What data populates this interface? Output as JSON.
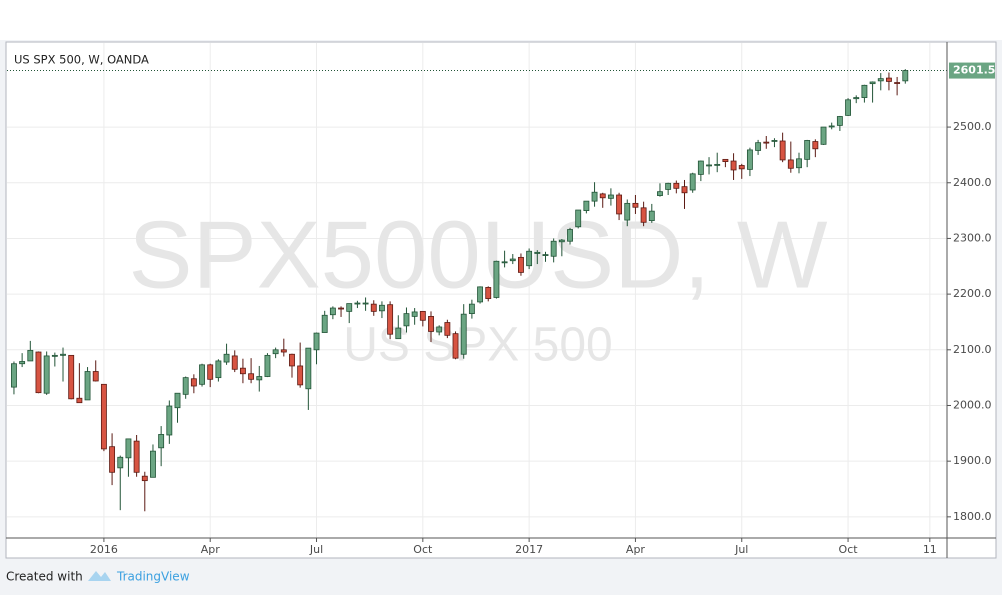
{
  "chart_data": {
    "type": "candlestick",
    "title": "US SPX 500, W, OANDA",
    "watermark": "SPX500USD, W",
    "watermark_subtitle": "US SPX 500",
    "categories": [
      null,
      null,
      null,
      null,
      null,
      null,
      null,
      null,
      null,
      null,
      null,
      null,
      null,
      null,
      null,
      null,
      null,
      null,
      null,
      null,
      null,
      null,
      null,
      null,
      null,
      null,
      null,
      null,
      null,
      null,
      null,
      null,
      null,
      null,
      null,
      null,
      null,
      null,
      null,
      null,
      null,
      null,
      null,
      null,
      null,
      null,
      null,
      null,
      null,
      null,
      null,
      null,
      null,
      null,
      null,
      null,
      null,
      null,
      null,
      null,
      null,
      null,
      null,
      null,
      null,
      null,
      null,
      null,
      null,
      null,
      null,
      null,
      null,
      null,
      null,
      null,
      null,
      null,
      null,
      null,
      null,
      null,
      null,
      null,
      null,
      null,
      null,
      null,
      null,
      null,
      null,
      null,
      null,
      null,
      null,
      null,
      null,
      null,
      null,
      null,
      null,
      null,
      null,
      null,
      null,
      null,
      null,
      null,
      null,
      null
    ],
    "series": [
      {
        "up_color": "#6ba583",
        "down_color": "#d75442",
        "up_border": "#225437",
        "down_border": "#5b1a13",
        "open": [
          2033,
          2075,
          2080,
          2096,
          2022,
          2089,
          2090,
          2090,
          2013,
          2010,
          2061,
          2038,
          1926,
          1888,
          1906,
          1936,
          1873,
          1871,
          1924,
          1947,
          1996,
          2020,
          2048,
          2038,
          2073,
          2050,
          2078,
          2089,
          2067,
          2057,
          2046,
          2052,
          2093,
          2100,
          2092,
          2071,
          2030,
          2100,
          2131,
          2163,
          2175,
          2169,
          2183,
          2184,
          2182,
          2170,
          2181,
          2120,
          2143,
          2160,
          2169,
          2160,
          2132,
          2149,
          2129,
          2092,
          2165,
          2186,
          2212,
          2194,
          2258,
          2260,
          2266,
          2251,
          2273,
          2270,
          2268,
          2294,
          2295,
          2321,
          2350,
          2367,
          2380,
          2372,
          2378,
          2333,
          2363,
          2355,
          2332,
          2377,
          2388,
          2399,
          2393,
          2387,
          2415,
          2431,
          2432,
          2442,
          2439,
          2431,
          2424,
          2458,
          2473,
          2475,
          2475,
          2441,
          2427,
          2442,
          2474,
          2469,
          2501,
          2503,
          2521,
          2551,
          2553,
          2578,
          2583,
          2588,
          2580,
          2583
        ],
        "high": [
          2079,
          2094,
          2116,
          2097,
          2097,
          2095,
          2104,
          2090,
          2076,
          2069,
          2081,
          2038,
          1950,
          1910,
          1940,
          1947,
          1881,
          1930,
          1963,
          2009,
          2022,
          2052,
          2056,
          2075,
          2075,
          2083,
          2111,
          2099,
          2084,
          2085,
          2071,
          2094,
          2104,
          2120,
          2093,
          2113,
          2103,
          2131,
          2170,
          2178,
          2178,
          2183,
          2188,
          2194,
          2189,
          2187,
          2187,
          2162,
          2176,
          2175,
          2169,
          2169,
          2144,
          2154,
          2133,
          2182,
          2190,
          2214,
          2214,
          2260,
          2278,
          2272,
          2273,
          2282,
          2279,
          2276,
          2300,
          2299,
          2319,
          2351,
          2367,
          2401,
          2382,
          2390,
          2382,
          2370,
          2378,
          2366,
          2362,
          2399,
          2400,
          2404,
          2405,
          2418,
          2440,
          2446,
          2454,
          2442,
          2453,
          2434,
          2463,
          2477,
          2484,
          2480,
          2490,
          2474,
          2454,
          2477,
          2478,
          2500,
          2508,
          2520,
          2552,
          2557,
          2576,
          2582,
          2597,
          2598,
          2590,
          2604
        ],
        "low": [
          2020,
          2069,
          2080,
          2022,
          2019,
          2070,
          2043,
          2011,
          2005,
          2010,
          2043,
          1918,
          1857,
          1812,
          1872,
          1872,
          1810,
          1871,
          1891,
          1931,
          1969,
          2012,
          2022,
          2034,
          2033,
          2043,
          2073,
          2060,
          2040,
          2040,
          2025,
          2051,
          2085,
          2088,
          2050,
          2032,
          1992,
          2074,
          2131,
          2155,
          2159,
          2148,
          2175,
          2170,
          2161,
          2157,
          2119,
          2120,
          2131,
          2145,
          2142,
          2114,
          2126,
          2121,
          2083,
          2084,
          2156,
          2183,
          2187,
          2192,
          2248,
          2254,
          2233,
          2245,
          2254,
          2258,
          2257,
          2268,
          2289,
          2318,
          2345,
          2357,
          2355,
          2359,
          2333,
          2322,
          2344,
          2322,
          2328,
          2375,
          2378,
          2381,
          2353,
          2382,
          2403,
          2415,
          2419,
          2428,
          2405,
          2407,
          2412,
          2450,
          2461,
          2464,
          2437,
          2418,
          2417,
          2428,
          2446,
          2468,
          2496,
          2493,
          2520,
          2543,
          2544,
          2544,
          2566,
          2566,
          2557,
          2578
        ],
        "close": [
          2075,
          2079,
          2099,
          2023,
          2089,
          2090,
          2092,
          2012,
          2005,
          2061,
          2044,
          1922,
          1880,
          1907,
          1940,
          1880,
          1865,
          1918,
          1948,
          1999,
          2022,
          2050,
          2035,
          2073,
          2047,
          2080,
          2092,
          2065,
          2057,
          2047,
          2052,
          2090,
          2100,
          2096,
          2071,
          2037,
          2103,
          2130,
          2162,
          2175,
          2174,
          2183,
          2184,
          2184,
          2169,
          2180,
          2128,
          2139,
          2165,
          2168,
          2153,
          2133,
          2141,
          2126,
          2085,
          2164,
          2182,
          2213,
          2192,
          2259,
          2258,
          2263,
          2239,
          2277,
          2275,
          2271,
          2295,
          2297,
          2316,
          2351,
          2367,
          2383,
          2373,
          2378,
          2344,
          2363,
          2356,
          2329,
          2349,
          2384,
          2399,
          2390,
          2382,
          2416,
          2439,
          2432,
          2433,
          2438,
          2423,
          2425,
          2459,
          2472,
          2472,
          2476,
          2441,
          2426,
          2443,
          2476,
          2461,
          2500,
          2502,
          2519,
          2549,
          2553,
          2575,
          2581,
          2587,
          2582,
          2579,
          2601.5
        ]
      }
    ],
    "xlim": [
      -0.85,
      114.1
    ],
    "xticks": [
      {
        "value": 11,
        "label": "2016"
      },
      {
        "value": 24,
        "label": "Apr"
      },
      {
        "value": 37,
        "label": "Jul"
      },
      {
        "value": 50,
        "label": "Oct"
      },
      {
        "value": 63,
        "label": "2017"
      },
      {
        "value": 76,
        "label": "Apr"
      },
      {
        "value": 89,
        "label": "Jul"
      },
      {
        "value": 102,
        "label": "Oct"
      },
      {
        "value": 112,
        "label": "11"
      }
    ],
    "ylim": [
      1762,
      2651
    ],
    "yticks": [
      {
        "value": 1800,
        "label": "1800.0"
      },
      {
        "value": 1900,
        "label": "1900.0"
      },
      {
        "value": 2000,
        "label": "2000.0"
      },
      {
        "value": 2100,
        "label": "2100.0"
      },
      {
        "value": 2200,
        "label": "2200.0"
      },
      {
        "value": 2300,
        "label": "2300.0"
      },
      {
        "value": 2400,
        "label": "2400.0"
      },
      {
        "value": 2500,
        "label": "2500.0"
      }
    ],
    "grid": true
  },
  "footer": {
    "text": "Created with",
    "brand": "TradingView"
  }
}
